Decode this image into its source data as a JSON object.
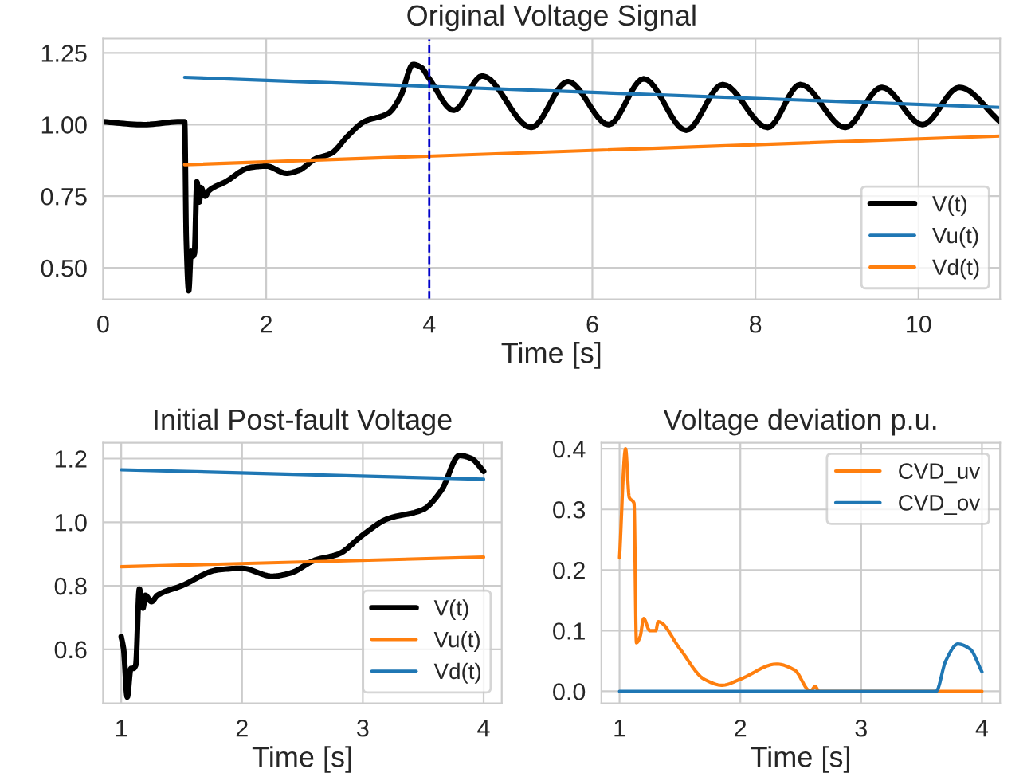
{
  "chart_data": [
    {
      "type": "line",
      "title": "Original Voltage Signal",
      "xlabel": "Time [s]",
      "xlim": [
        0,
        11
      ],
      "xticks": [
        0,
        2,
        4,
        6,
        8,
        10
      ],
      "ylim": [
        0.39,
        1.3
      ],
      "yticks": [
        {
          "value": 0.5,
          "label": "0.50"
        },
        {
          "value": 0.75,
          "label": "0.75"
        },
        {
          "value": 1.0,
          "label": "1.00"
        },
        {
          "value": 1.25,
          "label": "1.25"
        }
      ],
      "grid": true,
      "legend": "lower right",
      "ref_lines": [
        {
          "axis": "x",
          "value": 4,
          "color": "#0000cc",
          "line_style": "dashed"
        }
      ],
      "series": [
        {
          "name": "V(t)",
          "color": "#000000",
          "x": [
            0,
            0.5,
            0.95,
            1.0,
            1.02,
            1.05,
            1.08,
            1.1,
            1.12,
            1.15,
            1.18,
            1.2,
            1.25,
            1.3,
            1.5,
            1.8,
            2.0,
            2.25,
            2.4,
            2.6,
            2.8,
            3.0,
            3.2,
            3.5,
            3.65,
            3.8,
            3.9,
            4.0,
            4.3,
            4.65,
            5.25,
            5.7,
            6.2,
            6.63,
            7.15,
            7.6,
            8.15,
            8.55,
            9.1,
            9.55,
            10.05,
            10.5,
            11
          ],
          "values": [
            1.01,
            1.0,
            1.01,
            1.01,
            0.6,
            0.42,
            0.56,
            0.54,
            0.55,
            0.8,
            0.73,
            0.78,
            0.75,
            0.77,
            0.8,
            0.85,
            0.855,
            0.83,
            0.84,
            0.88,
            0.9,
            0.96,
            1.01,
            1.04,
            1.1,
            1.21,
            1.2,
            1.16,
            1.05,
            1.17,
            0.99,
            1.15,
            1.0,
            1.16,
            0.98,
            1.14,
            0.99,
            1.14,
            0.99,
            1.13,
            1.0,
            1.13,
            1.01
          ]
        },
        {
          "name": "Vu(t)",
          "color": "#1f77b4",
          "x": [
            1,
            11
          ],
          "values": [
            1.165,
            1.06
          ]
        },
        {
          "name": "Vd(t)",
          "color": "#ff7f0e",
          "x": [
            1,
            11
          ],
          "values": [
            0.86,
            0.96
          ]
        }
      ]
    },
    {
      "type": "line",
      "title": "Initial Post-fault Voltage",
      "xlabel": "Time [s]",
      "xlim": [
        0.85,
        4.15
      ],
      "xticks": [
        1,
        2,
        3,
        4
      ],
      "ylim": [
        0.43,
        1.25
      ],
      "yticks": [
        {
          "value": 0.6,
          "label": "0.6"
        },
        {
          "value": 0.8,
          "label": "0.8"
        },
        {
          "value": 1.0,
          "label": "1.0"
        },
        {
          "value": 1.2,
          "label": "1.2"
        }
      ],
      "grid": true,
      "legend": "lower right",
      "series": [
        {
          "name": "V(t)",
          "color": "#000000",
          "x": [
            1.0,
            1.02,
            1.05,
            1.08,
            1.1,
            1.12,
            1.15,
            1.18,
            1.2,
            1.25,
            1.3,
            1.5,
            1.8,
            2.0,
            2.25,
            2.4,
            2.6,
            2.8,
            3.0,
            3.2,
            3.5,
            3.65,
            3.8,
            3.9,
            4.0
          ],
          "values": [
            0.64,
            0.6,
            0.45,
            0.54,
            0.54,
            0.55,
            0.79,
            0.73,
            0.77,
            0.75,
            0.77,
            0.8,
            0.85,
            0.855,
            0.83,
            0.84,
            0.88,
            0.9,
            0.96,
            1.01,
            1.04,
            1.1,
            1.21,
            1.2,
            1.16
          ]
        },
        {
          "name": "Vu(t)",
          "color": "#ff7f0e",
          "x": [
            1,
            4
          ],
          "values": [
            0.86,
            0.89
          ]
        },
        {
          "name": "Vd(t)",
          "color": "#1f77b4",
          "x": [
            1,
            4
          ],
          "values": [
            1.165,
            1.135
          ]
        }
      ]
    },
    {
      "type": "line",
      "title": "Voltage deviation p.u.",
      "xlabel": "Time [s]",
      "xlim": [
        0.85,
        4.15
      ],
      "xticks": [
        1,
        2,
        3,
        4
      ],
      "ylim": [
        -0.02,
        0.41
      ],
      "yticks": [
        {
          "value": 0.0,
          "label": "0.0"
        },
        {
          "value": 0.1,
          "label": "0.1"
        },
        {
          "value": 0.2,
          "label": "0.2"
        },
        {
          "value": 0.3,
          "label": "0.3"
        },
        {
          "value": 0.4,
          "label": "0.4"
        }
      ],
      "grid": true,
      "legend": "upper right",
      "series": [
        {
          "name": "CVD_uv",
          "color": "#ff7f0e",
          "x": [
            1.0,
            1.05,
            1.08,
            1.12,
            1.14,
            1.17,
            1.2,
            1.25,
            1.3,
            1.32,
            1.5,
            1.7,
            1.85,
            2.0,
            2.3,
            2.45,
            2.58,
            2.62,
            2.65,
            4.0
          ],
          "values": [
            0.22,
            0.4,
            0.32,
            0.31,
            0.08,
            0.09,
            0.12,
            0.1,
            0.1,
            0.115,
            0.07,
            0.02,
            0.01,
            0.02,
            0.045,
            0.035,
            0.0,
            0.008,
            0.0,
            0.0
          ]
        },
        {
          "name": "CVD_ov",
          "color": "#1f77b4",
          "x": [
            1.0,
            3.62,
            3.7,
            3.8,
            3.9,
            4.0
          ],
          "values": [
            0.0,
            0.0,
            0.05,
            0.078,
            0.07,
            0.032
          ]
        }
      ]
    }
  ]
}
